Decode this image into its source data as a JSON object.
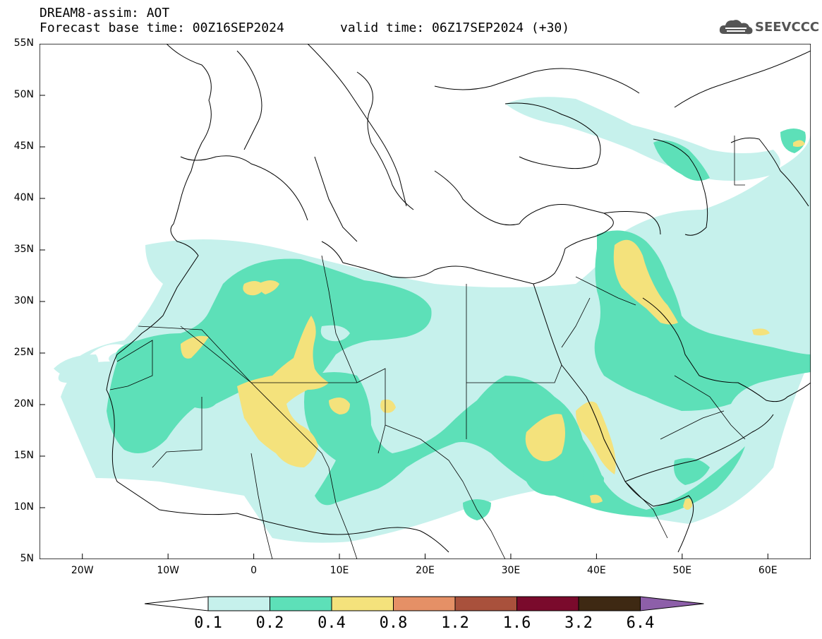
{
  "header": {
    "title": "DREAM8-assim: AOT",
    "base_time": "Forecast base time: 00Z16SEP2024",
    "valid_time": "valid time: 06Z17SEP2024 (+30)"
  },
  "logo": {
    "text": "SEEVCCC",
    "icon": "cloud-icon"
  },
  "map": {
    "lat_labels": [
      "55N",
      "50N",
      "45N",
      "40N",
      "35N",
      "30N",
      "25N",
      "20N",
      "15N",
      "10N",
      "5N"
    ],
    "lon_labels": [
      "20W",
      "10W",
      "0",
      "10E",
      "20E",
      "30E",
      "40E",
      "50E",
      "60E"
    ],
    "lon_range": [
      -25,
      65
    ],
    "lat_range": [
      5,
      55
    ]
  },
  "colorbar": {
    "labels": [
      "0.1",
      "0.2",
      "0.4",
      "0.8",
      "1.2",
      "1.6",
      "3.2",
      "6.4"
    ],
    "colors": [
      "#ffffff",
      "#c6f1ec",
      "#5de0b8",
      "#f4e27c",
      "#e59066",
      "#a9513c",
      "#7a0a2c",
      "#3e2913",
      "#8d5fa9"
    ]
  },
  "colors": {
    "level1": "#c6f1ec",
    "level2": "#5de0b8",
    "level3": "#f4e27c"
  }
}
